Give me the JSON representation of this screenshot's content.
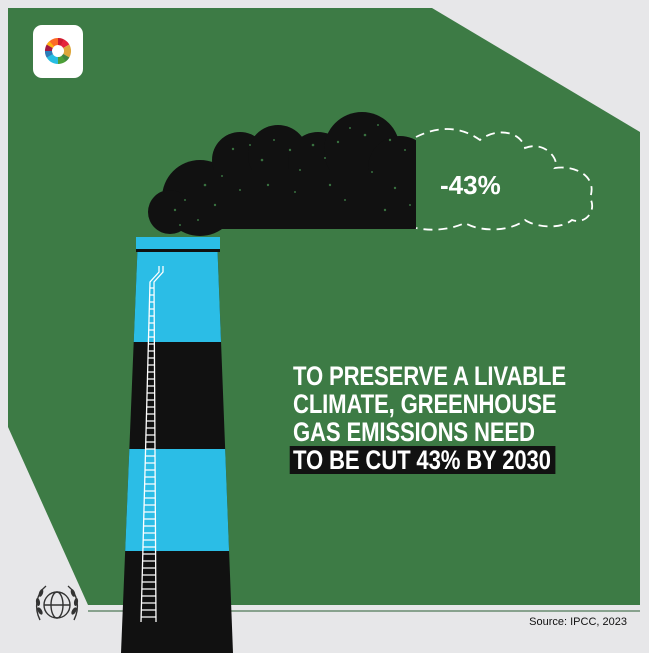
{
  "colors": {
    "green": "#3d7b45",
    "gray": "#e7e7e9",
    "blue": "#2bbde6",
    "black": "#111111",
    "white": "#ffffff"
  },
  "icons": {
    "top_left_logo": "sdg-color-wheel-icon",
    "bottom_left_logo": "un-emblem-icon"
  },
  "cloud": {
    "percent_label": "-43%"
  },
  "headline": {
    "line1": "TO PRESERVE A LIVABLE",
    "line2": "CLIMATE, GREENHOUSE",
    "line3": "GAS EMISSIONS NEED",
    "line4": "TO BE CUT 43% BY 2030"
  },
  "source": "Source: IPCC, 2023"
}
